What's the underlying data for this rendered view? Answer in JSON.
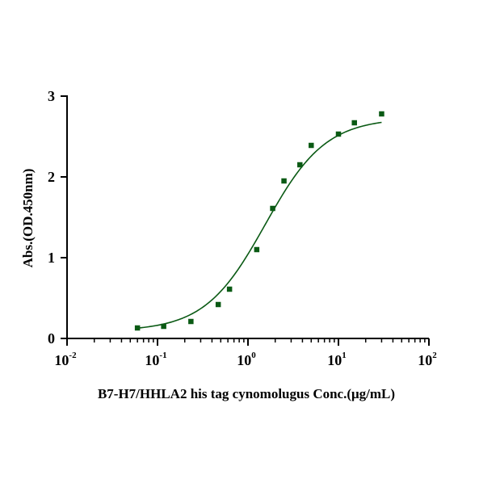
{
  "chart_data": {
    "type": "scatter",
    "title": "",
    "xlabel": "B7-H7/HHLA2 his tag cynomolugus Conc.(μg/mL)",
    "ylabel": "Abs.(OD.450nm)",
    "x_scale": "log",
    "xlim": [
      0.01,
      100
    ],
    "ylim": [
      0,
      3
    ],
    "x_ticks": [
      {
        "base": "10",
        "exp": "-2"
      },
      {
        "base": "10",
        "exp": "-1"
      },
      {
        "base": "10",
        "exp": "0"
      },
      {
        "base": "10",
        "exp": "1"
      },
      {
        "base": "10",
        "exp": "2"
      }
    ],
    "y_ticks": [
      "0",
      "1",
      "2",
      "3"
    ],
    "grid": false,
    "legend": "none",
    "series": [
      {
        "marker": "square",
        "color": "#0a5a14",
        "x": [
          0.06,
          0.117,
          0.234,
          0.469,
          0.625,
          1.25,
          1.875,
          2.5,
          3.75,
          5.0,
          10.0,
          15.0,
          30.0
        ],
        "y": [
          0.13,
          0.15,
          0.21,
          0.42,
          0.61,
          1.1,
          1.61,
          1.95,
          2.15,
          2.39,
          2.53,
          2.67,
          2.78
        ]
      }
    ],
    "fit_curve": {
      "type": "4PL",
      "color": "#0a5a14",
      "bottom": 0.09,
      "top": 2.73,
      "ec50": 1.55,
      "hill": 1.3
    }
  }
}
